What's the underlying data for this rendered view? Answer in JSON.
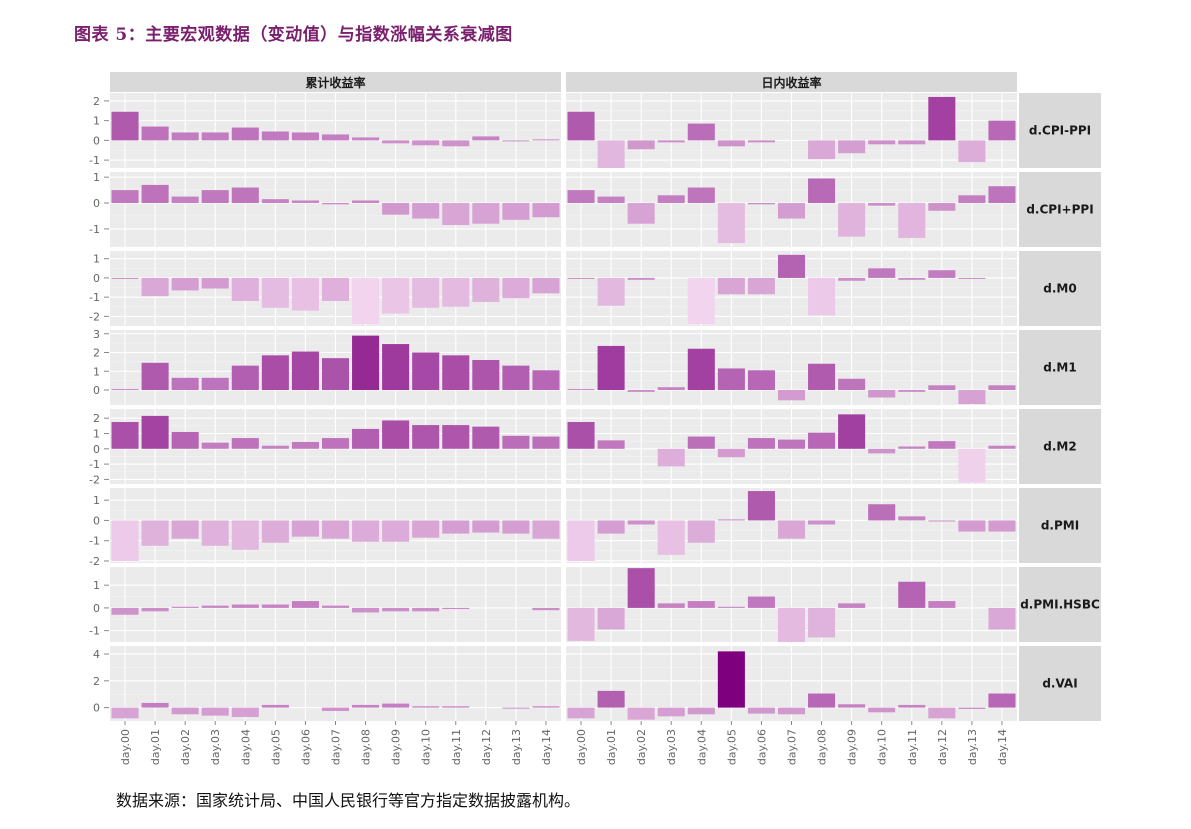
{
  "figure": {
    "title": "图表 5：主要宏观数据（变动值）与指数涨幅关系衰减图",
    "source": "数据来源：国家统计局、中国人民银行等官方指定数据披露机构。"
  },
  "chart_data": {
    "type": "bar",
    "layout": "facet_grid",
    "categories": [
      "day.00",
      "day.01",
      "day.02",
      "day.03",
      "day.04",
      "day.05",
      "day.06",
      "day.07",
      "day.08",
      "day.09",
      "day.10",
      "day.11",
      "day.12",
      "day.13",
      "day.14"
    ],
    "columns": [
      "累计收益率",
      "日内收益率"
    ],
    "fill_scale": {
      "low": "#f2d4ee",
      "high": "#7f007f",
      "range": [
        -2.3,
        4.2
      ]
    },
    "rows": [
      {
        "label": "d.CPI-PPI",
        "ylim": [
          -1.4,
          2.4
        ],
        "ticks": [
          2,
          1,
          0,
          -1
        ],
        "series": [
          [
            1.45,
            0.7,
            0.4,
            0.4,
            0.65,
            0.45,
            0.4,
            0.3,
            0.15,
            -0.15,
            -0.25,
            -0.3,
            0.2,
            -0.05,
            0.05
          ],
          [
            1.45,
            -1.4,
            -0.45,
            -0.1,
            0.85,
            -0.3,
            -0.1,
            0,
            -0.95,
            -0.65,
            -0.2,
            -0.2,
            2.2,
            -1.1,
            1.0
          ]
        ]
      },
      {
        "label": "d.CPI+PPI",
        "ylim": [
          -1.7,
          1.2
        ],
        "ticks": [
          1,
          0,
          -1
        ],
        "series": [
          [
            0.5,
            0.7,
            0.25,
            0.5,
            0.6,
            0.15,
            0.1,
            -0.05,
            0.1,
            -0.45,
            -0.6,
            -0.85,
            -0.8,
            -0.65,
            -0.55
          ],
          [
            0.5,
            0.25,
            -0.8,
            0.3,
            0.6,
            -1.55,
            -0.05,
            -0.6,
            0.95,
            -1.3,
            -0.1,
            -1.35,
            -0.3,
            0.3,
            0.65
          ]
        ]
      },
      {
        "label": "d.M0",
        "ylim": [
          -2.5,
          1.4
        ],
        "ticks": [
          1,
          0,
          -1,
          -2
        ],
        "series": [
          [
            -0.05,
            -0.95,
            -0.65,
            -0.55,
            -1.2,
            -1.55,
            -1.7,
            -1.2,
            -2.4,
            -1.85,
            -1.55,
            -1.5,
            -1.25,
            -1.05,
            -0.8
          ],
          [
            -0.05,
            -1.45,
            -0.1,
            0,
            -2.4,
            -0.85,
            -0.85,
            1.2,
            -1.95,
            -0.15,
            0.5,
            -0.1,
            0.4,
            -0.05,
            0
          ]
        ]
      },
      {
        "label": "d.M1",
        "ylim": [
          -0.8,
          3.2
        ],
        "ticks": [
          3,
          2,
          1,
          0
        ],
        "series": [
          [
            0.05,
            1.45,
            0.65,
            0.65,
            1.3,
            1.85,
            2.05,
            1.7,
            2.9,
            2.45,
            2.0,
            1.85,
            1.6,
            1.3,
            1.05
          ],
          [
            0.05,
            2.35,
            -0.1,
            0.15,
            2.2,
            1.15,
            1.05,
            -0.55,
            1.4,
            0.6,
            -0.4,
            -0.1,
            0.25,
            -0.75,
            0.25
          ]
        ]
      },
      {
        "label": "d.M2",
        "ylim": [
          -2.3,
          2.6
        ],
        "ticks": [
          2,
          1,
          0,
          -1,
          -2
        ],
        "series": [
          [
            1.75,
            2.15,
            1.1,
            0.4,
            0.7,
            0.2,
            0.45,
            0.7,
            1.3,
            1.85,
            1.55,
            1.55,
            1.45,
            0.85,
            0.8
          ],
          [
            1.75,
            0.55,
            0,
            -1.15,
            0.8,
            -0.55,
            0.7,
            0.6,
            1.05,
            2.25,
            -0.3,
            0.15,
            0.5,
            -2.2,
            0.2
          ]
        ]
      },
      {
        "label": "d.PMI",
        "ylim": [
          -2.1,
          1.6
        ],
        "ticks": [
          1,
          0,
          -1,
          -2
        ],
        "series": [
          [
            -2.0,
            -1.25,
            -0.9,
            -1.25,
            -1.45,
            -1.1,
            -0.8,
            -0.9,
            -1.05,
            -1.05,
            -0.85,
            -0.65,
            -0.6,
            -0.65,
            -0.9
          ],
          [
            -2.0,
            -0.65,
            -0.2,
            -1.7,
            -1.1,
            0.05,
            1.45,
            -0.9,
            -0.2,
            0,
            0.8,
            0.2,
            -0.05,
            -0.55,
            -0.55
          ]
        ]
      },
      {
        "label": "d.PMI.HSBC",
        "ylim": [
          -1.5,
          1.8
        ],
        "ticks": [
          1,
          0,
          -1
        ],
        "series": [
          [
            -0.3,
            -0.15,
            0.05,
            0.1,
            0.15,
            0.15,
            0.3,
            0.1,
            -0.2,
            -0.15,
            -0.15,
            -0.05,
            0,
            0,
            -0.1
          ],
          [
            -1.45,
            -0.95,
            1.75,
            0.2,
            0.3,
            0.05,
            0.5,
            -1.5,
            -1.3,
            0.2,
            0,
            1.15,
            0.3,
            0,
            -0.95
          ]
        ]
      },
      {
        "label": "d.VAI",
        "ylim": [
          -1.0,
          4.6
        ],
        "ticks": [
          4,
          2,
          0
        ],
        "series": [
          [
            -0.8,
            0.35,
            -0.5,
            -0.6,
            -0.7,
            0.2,
            0,
            -0.25,
            0.2,
            0.3,
            0.1,
            0.1,
            0,
            -0.05,
            0.1
          ],
          [
            -0.8,
            1.25,
            -0.9,
            -0.65,
            -0.5,
            4.2,
            -0.45,
            -0.5,
            1.05,
            0.25,
            -0.35,
            0.2,
            -0.8,
            -0.1,
            1.05
          ]
        ]
      }
    ]
  }
}
